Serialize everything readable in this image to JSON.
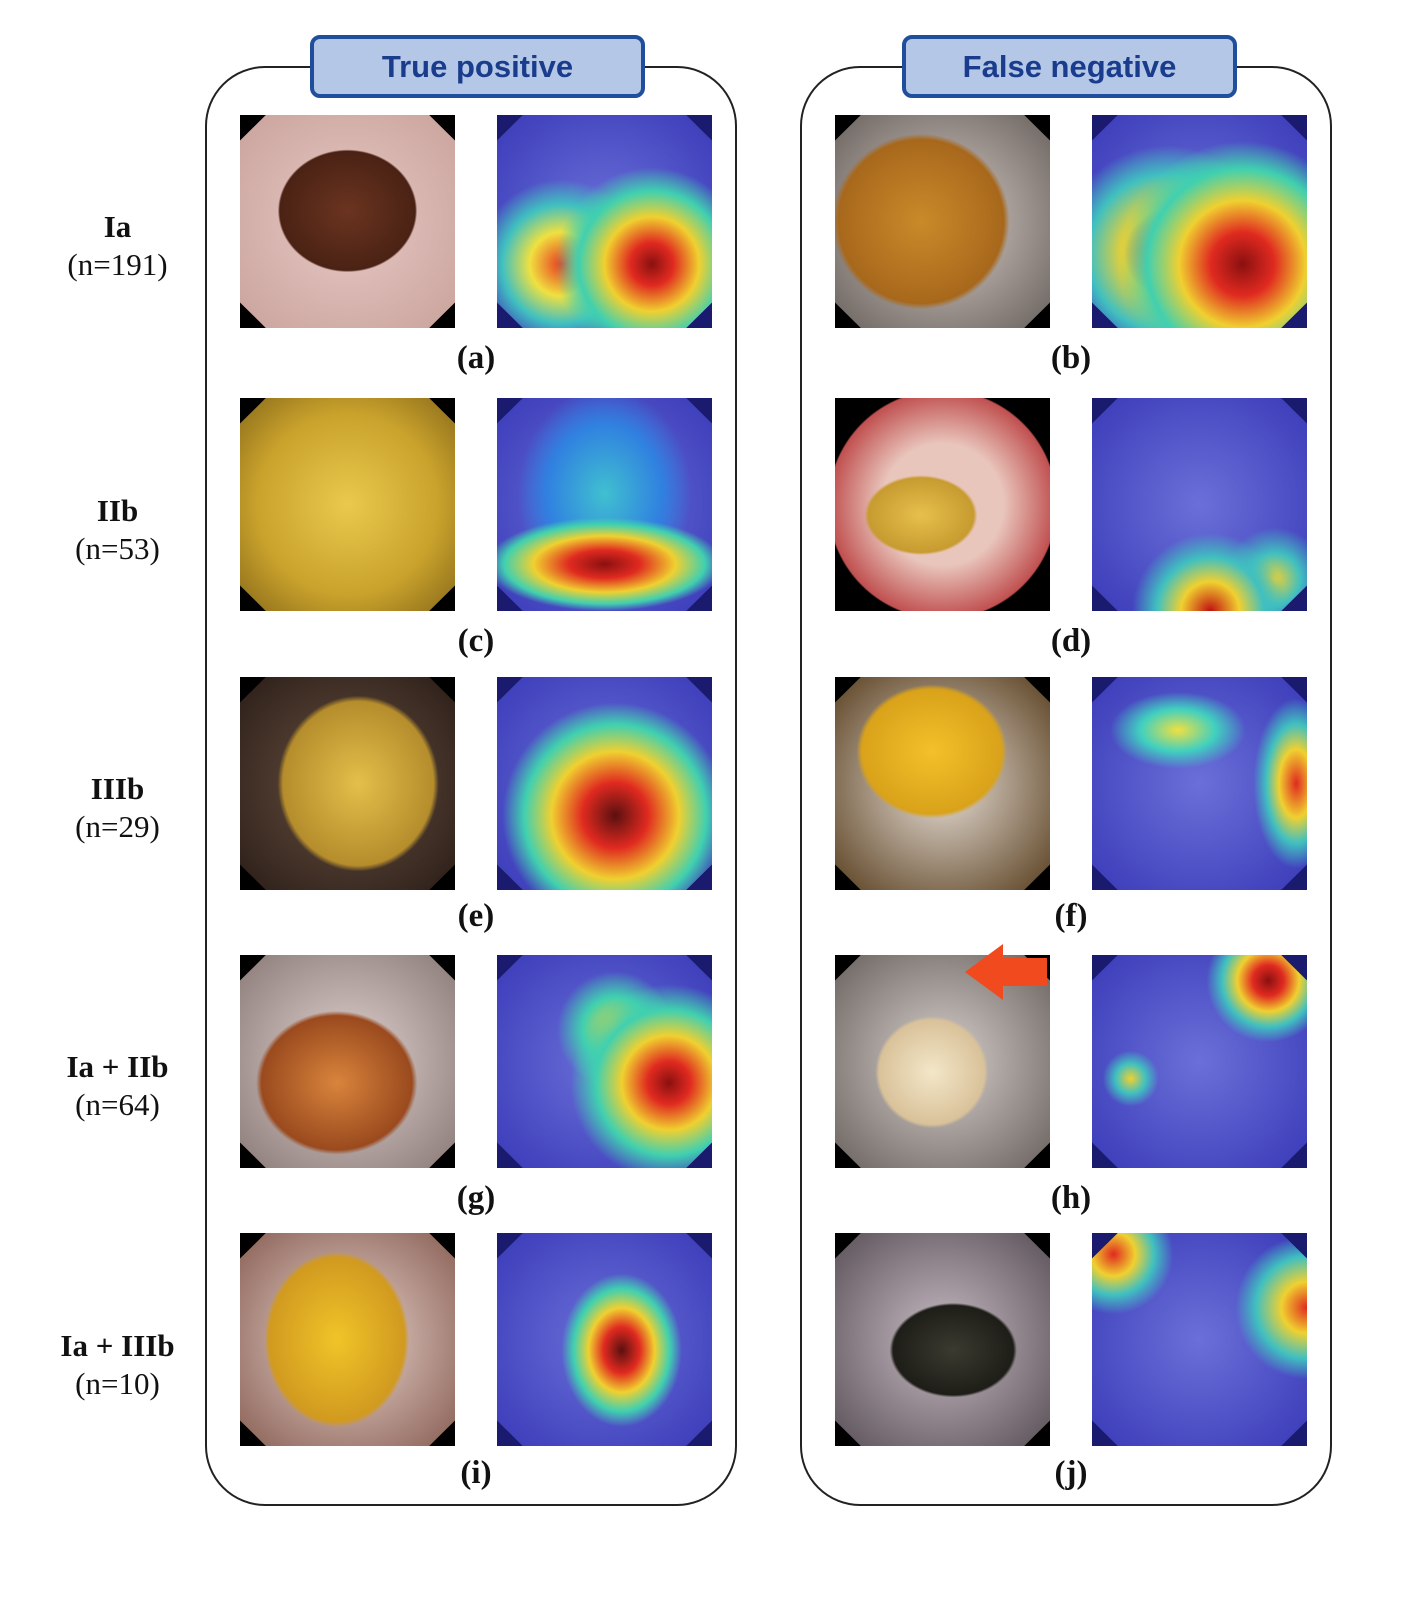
{
  "headers": {
    "true_positive": "True positive",
    "false_negative": "False negative"
  },
  "rows": [
    {
      "type": "Ia",
      "count": "(n=191)",
      "tp_caption": "(a)",
      "fn_caption": "(b)"
    },
    {
      "type": "IIb",
      "count": "(n=53)",
      "tp_caption": "(c)",
      "fn_caption": "(d)"
    },
    {
      "type": "IIIb",
      "count": "(n=29)",
      "tp_caption": "(e)",
      "fn_caption": "(f)"
    },
    {
      "type": "Ia + IIb",
      "count": "(n=64)",
      "tp_caption": "(g)",
      "fn_caption": "(h)"
    },
    {
      "type": "Ia + IIIb",
      "count": "(n=10)",
      "tp_caption": "(i)",
      "fn_caption": "(j)"
    }
  ],
  "colors": {
    "header_fill": "#b4c7e7",
    "header_border": "#1f4e9c",
    "header_text": "#1a3c8c",
    "arrow": "#f04a1e"
  }
}
